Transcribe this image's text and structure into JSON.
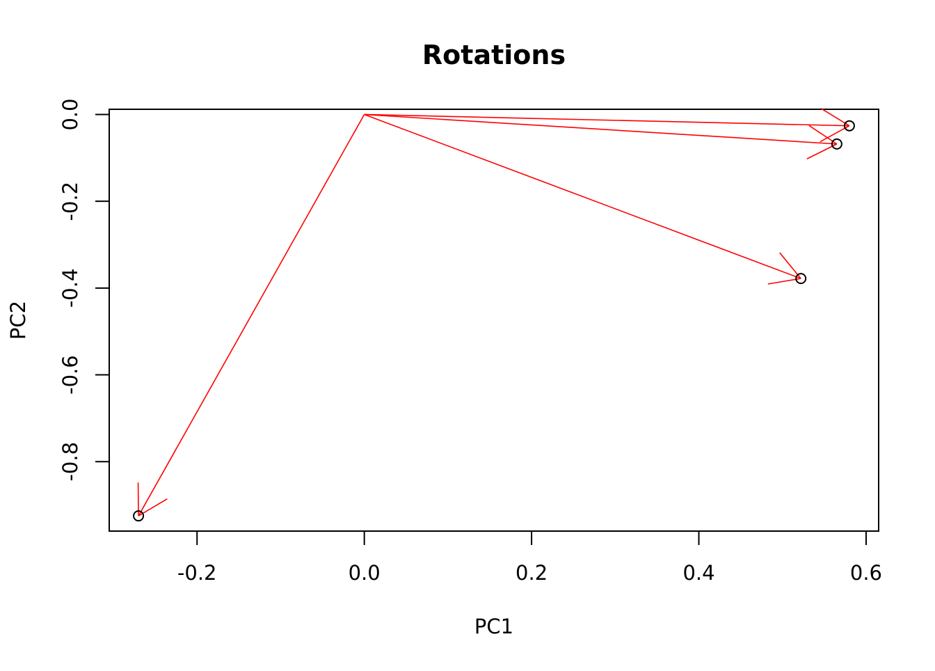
{
  "chart_data": {
    "type": "scatter",
    "title": "Rotations",
    "xlabel": "PC1",
    "ylabel": "PC2",
    "xlim": [
      -0.305,
      0.615
    ],
    "ylim": [
      -0.96,
      0.012
    ],
    "xticks": [
      -0.2,
      0.0,
      0.2,
      0.4,
      0.6
    ],
    "xtick_labels": [
      "-0.2",
      "0.0",
      "0.2",
      "0.4",
      "0.6"
    ],
    "yticks": [
      0.0,
      -0.2,
      -0.4,
      -0.6,
      -0.8
    ],
    "ytick_labels": [
      "0.0",
      "-0.2",
      "-0.4",
      "-0.6",
      "-0.8"
    ],
    "grid": false,
    "origin": [
      0.0,
      0.0
    ],
    "points": [
      {
        "x": 0.58,
        "y": -0.026
      },
      {
        "x": 0.565,
        "y": -0.068
      },
      {
        "x": 0.522,
        "y": -0.378
      },
      {
        "x": -0.27,
        "y": -0.925
      }
    ],
    "point_color": "#000000",
    "arrow_color": "#ff0000",
    "axis_color": "#000000"
  }
}
